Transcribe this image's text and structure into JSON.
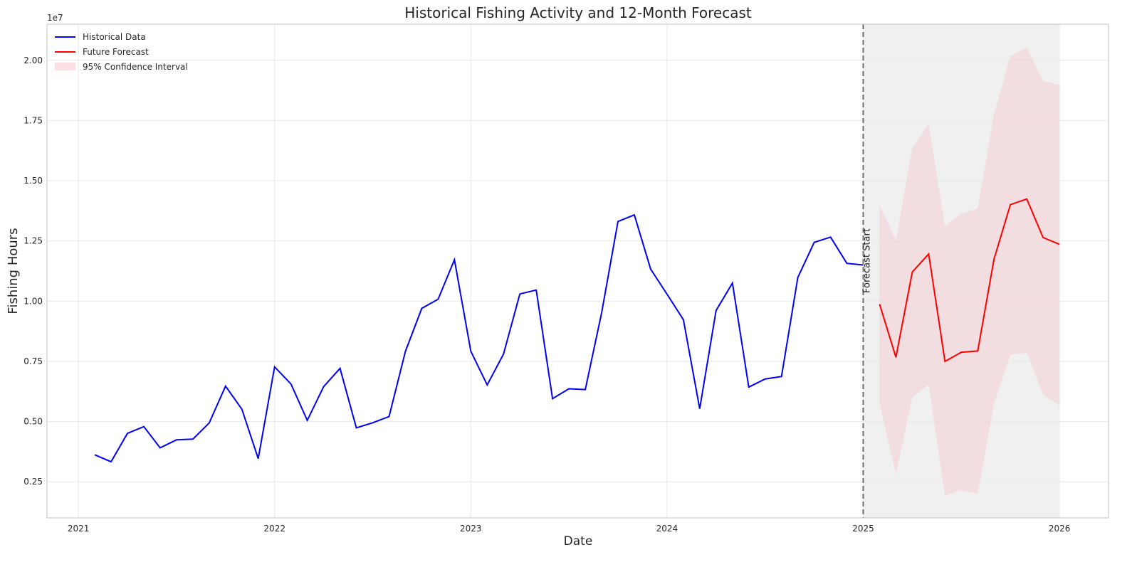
{
  "chart_data": {
    "type": "line",
    "title": "Historical Fishing Activity and 12-Month Forecast",
    "xlabel": "Date",
    "ylabel": "Fishing Hours",
    "y_offset_text": "1e7",
    "y_tick_labels": [
      "0.25",
      "0.50",
      "0.75",
      "1.00",
      "1.25",
      "1.50",
      "1.75",
      "2.00"
    ],
    "y_tick_values": [
      0.25,
      0.5,
      0.75,
      1.0,
      1.25,
      1.5,
      1.75,
      2.0
    ],
    "ylim": [
      0.1,
      2.15
    ],
    "x_tick_labels": [
      "2021",
      "2022",
      "2023",
      "2024",
      "2025",
      "2026"
    ],
    "x_tick_values": [
      2021.0,
      2022.0,
      2023.0,
      2024.0,
      2025.0,
      2026.0
    ],
    "xlim": [
      2020.84,
      2026.25
    ],
    "grid": true,
    "legend_position": "top-left",
    "forecast_line": {
      "x": 2025.0,
      "label": "Forecast Start"
    },
    "forecast_region": [
      2025.0,
      2026.0
    ],
    "colors": {
      "historical": "#0000ff",
      "forecast": "#ff0000",
      "ci_fill": "#f4c6cf",
      "forecast_shade": "#f0f0f0",
      "vline": "#6e6e6e",
      "grid": "#e9e9e9",
      "axis": "#cccccc",
      "text": "#262626"
    },
    "series": [
      {
        "name": "Historical Data",
        "values_scale": "1e7",
        "x": [
          "2021-02",
          "2021-03",
          "2021-04",
          "2021-05",
          "2021-06",
          "2021-07",
          "2021-08",
          "2021-09",
          "2021-10",
          "2021-11",
          "2021-12",
          "2022-01",
          "2022-02",
          "2022-03",
          "2022-04",
          "2022-05",
          "2022-06",
          "2022-07",
          "2022-08",
          "2022-09",
          "2022-10",
          "2022-11",
          "2022-12",
          "2023-01",
          "2023-02",
          "2023-03",
          "2023-04",
          "2023-05",
          "2023-06",
          "2023-07",
          "2023-08",
          "2023-09",
          "2023-10",
          "2023-11",
          "2023-12",
          "2024-01",
          "2024-02",
          "2024-03",
          "2024-04",
          "2024-05",
          "2024-06",
          "2024-07",
          "2024-08",
          "2024-09",
          "2024-10",
          "2024-11",
          "2024-12",
          "2025-01"
        ],
        "values": [
          0.362,
          0.333,
          0.451,
          0.479,
          0.391,
          0.424,
          0.427,
          0.494,
          0.647,
          0.551,
          0.346,
          0.727,
          0.656,
          0.505,
          0.645,
          0.721,
          0.474,
          0.495,
          0.521,
          0.791,
          0.97,
          1.008,
          1.172,
          0.792,
          0.652,
          0.78,
          1.03,
          1.046,
          0.595,
          0.636,
          0.633,
          0.951,
          1.331,
          1.358,
          1.133,
          1.029,
          0.923,
          0.553,
          0.961,
          1.075,
          0.643,
          0.677,
          0.687,
          1.098,
          1.244,
          1.266,
          1.157,
          1.15
        ]
      },
      {
        "name": "Future Forecast",
        "values_scale": "1e7",
        "x": [
          "2025-02",
          "2025-03",
          "2025-04",
          "2025-05",
          "2025-06",
          "2025-07",
          "2025-08",
          "2025-09",
          "2025-10",
          "2025-11",
          "2025-12",
          "2026-01"
        ],
        "values": [
          0.987,
          0.767,
          1.121,
          1.196,
          0.75,
          0.788,
          0.793,
          1.175,
          1.401,
          1.424,
          1.264,
          1.236
        ],
        "ci_lower": [
          0.575,
          0.28,
          0.6,
          0.653,
          0.192,
          0.215,
          0.2,
          0.574,
          0.777,
          0.786,
          0.611,
          0.567
        ],
        "ci_upper": [
          1.399,
          1.253,
          1.635,
          1.735,
          1.311,
          1.364,
          1.384,
          1.776,
          2.017,
          2.055,
          1.914,
          1.898
        ]
      }
    ],
    "legend": [
      {
        "label": "Historical Data",
        "kind": "line",
        "color": "#0000ff"
      },
      {
        "label": "Future Forecast",
        "kind": "line",
        "color": "#ff0000"
      },
      {
        "label": "95% Confidence Interval",
        "kind": "patch",
        "color": "#fde0e5"
      }
    ]
  }
}
